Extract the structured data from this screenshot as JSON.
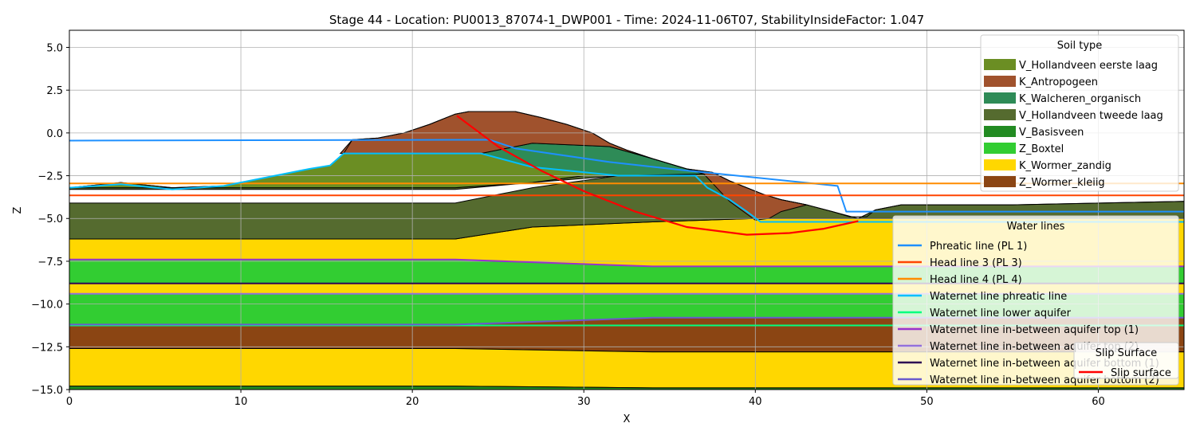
{
  "chart_data": {
    "type": "area",
    "title": "Stage 44 - Location: PU0013_87074-1_DWP001 - Time: 2024-11-06T07, StabilityInsideFactor: 1.047",
    "xlabel": "X",
    "ylabel": "Z",
    "xlim": [
      0,
      65
    ],
    "ylim": [
      -15,
      6
    ],
    "xticks": [
      0,
      10,
      20,
      30,
      40,
      50,
      60
    ],
    "yticks": [
      5.0,
      2.5,
      0.0,
      -2.5,
      -5.0,
      -7.5,
      -10.0,
      -12.5,
      -15.0
    ],
    "ytick_labels": [
      "5.0",
      "2.5",
      "0.0",
      "−2.5",
      "−5.0",
      "−7.5",
      "−10.0",
      "−12.5",
      "−15.0"
    ],
    "grid": true,
    "layers": [
      {
        "name": "Z_Wormer_kleiig",
        "color": "#8B4513",
        "polygon": [
          [
            0,
            -11.2
          ],
          [
            22.5,
            -11.2
          ],
          [
            34,
            -10.8
          ],
          [
            65,
            -10.8
          ],
          [
            65,
            -12.8
          ],
          [
            34,
            -12.8
          ],
          [
            22.5,
            -12.6
          ],
          [
            0,
            -12.6
          ]
        ]
      },
      {
        "name": "K_Wormer_zandig",
        "color": "#FFD700",
        "polygon": [
          [
            0,
            -12.6
          ],
          [
            22.5,
            -12.6
          ],
          [
            34,
            -12.8
          ],
          [
            65,
            -12.8
          ],
          [
            65,
            -14.9
          ],
          [
            34,
            -14.9
          ],
          [
            22.5,
            -14.8
          ],
          [
            0,
            -14.8
          ]
        ]
      },
      {
        "name": "V_Basisveen",
        "color": "#228B22",
        "polygon": [
          [
            0,
            -14.8
          ],
          [
            22.5,
            -14.8
          ],
          [
            34,
            -14.9
          ],
          [
            65,
            -14.9
          ],
          [
            65,
            -15
          ],
          [
            0,
            -15
          ]
        ]
      },
      {
        "name": "Z_Boxtel",
        "color": "#32CD32",
        "polygon": [
          [
            0,
            -9.4
          ],
          [
            22.5,
            -9.4
          ],
          [
            34,
            -9.4
          ],
          [
            65,
            -9.4
          ],
          [
            65,
            -10.8
          ],
          [
            34,
            -10.8
          ],
          [
            22.5,
            -11.2
          ],
          [
            0,
            -11.2
          ]
        ]
      },
      {
        "name": "K_Wormer_zandig",
        "color": "#FFD700",
        "polygon": [
          [
            0,
            -8.8
          ],
          [
            22.5,
            -8.8
          ],
          [
            34,
            -8.8
          ],
          [
            65,
            -8.8
          ],
          [
            65,
            -9.4
          ],
          [
            0,
            -9.4
          ]
        ]
      },
      {
        "name": "Z_Boxtel",
        "color": "#32CD32",
        "polygon": [
          [
            0,
            -7.4
          ],
          [
            22.5,
            -7.4
          ],
          [
            34,
            -7.8
          ],
          [
            65,
            -7.8
          ],
          [
            65,
            -8.8
          ],
          [
            0,
            -8.8
          ]
        ]
      },
      {
        "name": "K_Wormer_zandig",
        "color": "#FFD700",
        "polygon": [
          [
            0,
            -6.2
          ],
          [
            22.5,
            -6.2
          ],
          [
            27,
            -5.5
          ],
          [
            34,
            -5.2
          ],
          [
            40,
            -5.0
          ],
          [
            48,
            -5.0
          ],
          [
            65,
            -5.0
          ],
          [
            65,
            -7.8
          ],
          [
            34,
            -7.8
          ],
          [
            22.5,
            -7.4
          ],
          [
            0,
            -7.4
          ]
        ]
      },
      {
        "name": "V_Hollandveen tweede laag",
        "color": "#556B2F",
        "polygon": [
          [
            0,
            -4.1
          ],
          [
            22.5,
            -4.1
          ],
          [
            27,
            -3.2
          ],
          [
            32,
            -2.5
          ],
          [
            37,
            -2.4
          ],
          [
            38.5,
            -3.2
          ],
          [
            40.5,
            -3.6
          ],
          [
            41.5,
            -3.9
          ],
          [
            43,
            -4.2
          ],
          [
            44.5,
            -4.6
          ],
          [
            46,
            -5.0
          ],
          [
            47,
            -4.5
          ],
          [
            48.5,
            -4.2
          ],
          [
            55,
            -4.2
          ],
          [
            65,
            -4.0
          ],
          [
            65,
            -5.0
          ],
          [
            48,
            -5.0
          ],
          [
            40,
            -5.0
          ],
          [
            34,
            -5.2
          ],
          [
            27,
            -5.5
          ],
          [
            22.5,
            -6.2
          ],
          [
            0,
            -6.2
          ]
        ]
      },
      {
        "name": "V_Hollandveen tweede laag",
        "color": "#556B2F",
        "polygon": [
          [
            0,
            -3.2
          ],
          [
            22.5,
            -3.2
          ],
          [
            27,
            -2.9
          ],
          [
            30,
            -2.5
          ],
          [
            32,
            -2.5
          ],
          [
            27,
            -2.9
          ],
          [
            22.5,
            -3.3
          ],
          [
            0,
            -3.3
          ]
        ]
      },
      {
        "name": "K_Walcheren_organisch",
        "color": "#2E8B57",
        "polygon": [
          [
            24,
            -1.2
          ],
          [
            27,
            -0.6
          ],
          [
            31.5,
            -0.8
          ],
          [
            34,
            -1.5
          ],
          [
            36,
            -2.1
          ],
          [
            37,
            -2.4
          ],
          [
            32,
            -2.5
          ],
          [
            27,
            -2.0
          ],
          [
            24,
            -1.2
          ]
        ]
      },
      {
        "name": "V_Hollandveen eerste laag",
        "color": "#6B8E23",
        "polygon": [
          [
            0,
            -3.2
          ],
          [
            3,
            -2.9
          ],
          [
            6,
            -3.2
          ],
          [
            9,
            -3.1
          ],
          [
            12,
            -2.5
          ],
          [
            14,
            -2.1
          ],
          [
            15.2,
            -1.9
          ],
          [
            16,
            -1.2
          ],
          [
            24,
            -1.2
          ],
          [
            27,
            -2.0
          ],
          [
            32,
            -2.5
          ],
          [
            30,
            -2.5
          ],
          [
            27,
            -2.9
          ],
          [
            22.5,
            -3.2
          ],
          [
            0,
            -3.2
          ]
        ]
      },
      {
        "name": "K_Antropogeen",
        "color": "#A0522D",
        "polygon": [
          [
            15.8,
            -1.2
          ],
          [
            16.5,
            -0.4
          ],
          [
            18,
            -0.3
          ],
          [
            19.5,
            0.0
          ],
          [
            21,
            0.5
          ],
          [
            22.5,
            1.1
          ],
          [
            23.3,
            1.25
          ],
          [
            26,
            1.25
          ],
          [
            27.5,
            0.9
          ],
          [
            29,
            0.5
          ],
          [
            30.5,
            0.0
          ],
          [
            31.5,
            -0.6
          ],
          [
            32.5,
            -1.0
          ],
          [
            34,
            -1.5
          ],
          [
            36,
            -2.1
          ],
          [
            37.5,
            -2.3
          ],
          [
            38.5,
            -2.8
          ],
          [
            39.5,
            -3.2
          ],
          [
            40.5,
            -3.6
          ],
          [
            41.5,
            -3.9
          ],
          [
            43,
            -4.2
          ],
          [
            41.5,
            -4.6
          ],
          [
            40.8,
            -5.0
          ],
          [
            40,
            -5.1
          ],
          [
            38.5,
            -4.0
          ],
          [
            37,
            -2.4
          ],
          [
            34,
            -1.5
          ],
          [
            31.5,
            -0.8
          ],
          [
            27,
            -0.6
          ],
          [
            24,
            -1.2
          ],
          [
            16,
            -1.2
          ]
        ]
      }
    ],
    "surface_line": [
      [
        0,
        -3.2
      ],
      [
        3,
        -2.9
      ],
      [
        6,
        -3.2
      ],
      [
        9,
        -3.1
      ],
      [
        12,
        -2.5
      ],
      [
        14,
        -2.1
      ],
      [
        15.2,
        -1.9
      ],
      [
        16,
        -1.2
      ],
      [
        16.5,
        -0.4
      ],
      [
        18,
        -0.3
      ],
      [
        19.5,
        0.0
      ],
      [
        21,
        0.5
      ],
      [
        22.5,
        1.1
      ],
      [
        23.3,
        1.25
      ],
      [
        26,
        1.25
      ],
      [
        27.5,
        0.9
      ],
      [
        29,
        0.5
      ],
      [
        30.5,
        0.0
      ],
      [
        31.5,
        -0.6
      ],
      [
        32.5,
        -1.0
      ],
      [
        34,
        -1.5
      ],
      [
        36,
        -2.1
      ],
      [
        37.5,
        -2.3
      ],
      [
        38.5,
        -2.8
      ],
      [
        39.5,
        -3.2
      ],
      [
        40.5,
        -3.6
      ],
      [
        41.5,
        -3.9
      ],
      [
        43,
        -4.2
      ],
      [
        44.5,
        -4.6
      ],
      [
        45.5,
        -4.9
      ],
      [
        46.5,
        -4.9
      ],
      [
        47,
        -4.5
      ],
      [
        48.5,
        -4.2
      ],
      [
        55,
        -4.2
      ],
      [
        65,
        -4.0
      ]
    ],
    "soil_legend": {
      "title": "Soil type",
      "entries": [
        {
          "name": "V_Hollandveen eerste laag",
          "color": "#6B8E23"
        },
        {
          "name": "K_Antropogeen",
          "color": "#A0522D"
        },
        {
          "name": "K_Walcheren_organisch",
          "color": "#2E8B57"
        },
        {
          "name": "V_Hollandveen tweede laag",
          "color": "#556B2F"
        },
        {
          "name": "V_Basisveen",
          "color": "#228B22"
        },
        {
          "name": "Z_Boxtel",
          "color": "#32CD32"
        },
        {
          "name": "K_Wormer_zandig",
          "color": "#FFD700"
        },
        {
          "name": "Z_Wormer_kleiig",
          "color": "#8B4513"
        }
      ]
    },
    "series": [
      {
        "name": "Phreatic line (PL 1)",
        "color": "#1E90FF",
        "x": [
          0,
          24.5,
          26,
          31.5,
          36,
          44.8,
          45.3,
          65
        ],
        "y": [
          -0.45,
          -0.4,
          -0.9,
          -1.7,
          -2.2,
          -3.1,
          -4.6,
          -4.6
        ]
      },
      {
        "name": "Head line 3 (PL 3)",
        "color": "#FF4500",
        "x": [
          0,
          65
        ],
        "y": [
          -3.65,
          -3.65
        ]
      },
      {
        "name": "Head line 4 (PL 4)",
        "color": "#FF8C00",
        "x": [
          0,
          65
        ],
        "y": [
          -2.95,
          -2.95
        ]
      },
      {
        "name": "Waternet line phreatic line",
        "color": "#00BFFF",
        "x": [
          0,
          3,
          6,
          9,
          12,
          14,
          15.2,
          16,
          24,
          27,
          32,
          36.5,
          37.2,
          38.5,
          39.5,
          40.3,
          41,
          48,
          65
        ],
        "y": [
          -3.2,
          -3.0,
          -3.3,
          -3.1,
          -2.5,
          -2.1,
          -1.9,
          -1.2,
          -1.2,
          -2.0,
          -2.5,
          -2.5,
          -3.2,
          -3.9,
          -4.6,
          -5.2,
          -5.2,
          -5.2,
          -5.2
        ]
      },
      {
        "name": "Waternet line lower aquifer",
        "color": "#00FF7F",
        "x": [
          0,
          65
        ],
        "y": [
          -11.25,
          -11.25
        ]
      },
      {
        "name": "Waternet line in-between aquifer top (1)",
        "color": "#9932CC",
        "x": [
          0,
          22.5,
          34,
          65
        ],
        "y": [
          -7.4,
          -7.4,
          -7.8,
          -7.8
        ]
      },
      {
        "name": "Waternet line in-between aquifer top (2)",
        "color": "#9370DB",
        "x": [
          0,
          65
        ],
        "y": [
          -9.4,
          -9.4
        ]
      },
      {
        "name": "Waternet line in-between aquifer bottom (1)",
        "color": "#2E0854",
        "x": [
          0,
          65
        ],
        "y": [
          -8.8,
          -8.8
        ]
      },
      {
        "name": "Waternet line in-between aquifer bottom (2)",
        "color": "#6A5ACD",
        "x": [
          0,
          22.5,
          34,
          65
        ],
        "y": [
          -11.2,
          -11.2,
          -10.8,
          -10.8
        ]
      }
    ],
    "water_legend": {
      "title": "Water lines",
      "entries": [
        {
          "name": "Phreatic line (PL 1)",
          "color": "#1E90FF"
        },
        {
          "name": "Head line 3 (PL 3)",
          "color": "#FF4500"
        },
        {
          "name": "Head line 4 (PL 4)",
          "color": "#FF8C00"
        },
        {
          "name": "Waternet line phreatic line",
          "color": "#00BFFF"
        },
        {
          "name": "Waternet line lower aquifer",
          "color": "#00FF7F"
        },
        {
          "name": "Waternet line in-between aquifer top (1)",
          "color": "#9932CC"
        },
        {
          "name": "Waternet line in-between aquifer top (2)",
          "color": "#9370DB"
        },
        {
          "name": "Waternet line in-between aquifer bottom (1)",
          "color": "#2E0854"
        },
        {
          "name": "Waternet line in-between aquifer bottom (2)",
          "color": "#6A5ACD"
        }
      ]
    },
    "slip_surface": {
      "name": "Slip surface",
      "color": "#FF0000",
      "x": [
        22.6,
        25,
        27.5,
        30,
        33,
        36,
        39.5,
        42,
        44,
        46
      ],
      "y": [
        1.0,
        -0.8,
        -2.2,
        -3.4,
        -4.6,
        -5.5,
        -5.95,
        -5.85,
        -5.6,
        -5.15
      ]
    },
    "slip_legend": {
      "title": "Slip Surface",
      "entries": [
        {
          "name": "Slip surface",
          "color": "#FF0000"
        }
      ]
    }
  }
}
